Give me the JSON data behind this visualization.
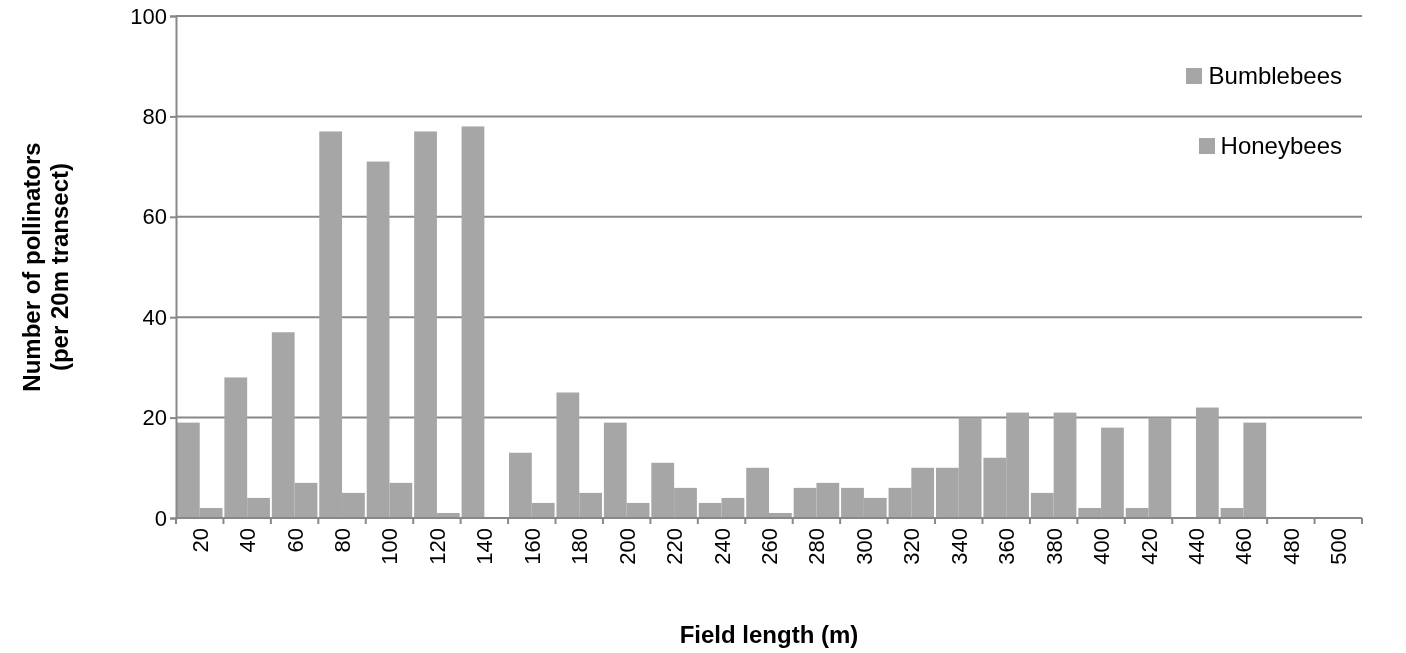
{
  "chart_data": {
    "type": "bar",
    "xlabel": "Field length (m)",
    "ylabel": "Number of pollinators\n(per 20m transect)",
    "categories": [
      "20",
      "40",
      "60",
      "80",
      "100",
      "120",
      "140",
      "160",
      "180",
      "200",
      "220",
      "240",
      "260",
      "280",
      "300",
      "320",
      "340",
      "360",
      "380",
      "400",
      "420",
      "440",
      "460",
      "480",
      "500"
    ],
    "series": [
      {
        "name": "Bumblebees",
        "color": "#a6a6a6",
        "values": [
          19,
          28,
          37,
          77,
          71,
          77,
          78,
          13,
          25,
          19,
          11,
          3,
          10,
          6,
          6,
          6,
          10,
          12,
          5,
          2,
          2,
          0,
          2,
          0,
          0
        ]
      },
      {
        "name": "Honeybees",
        "color": "#a6a6a6",
        "values": [
          2,
          4,
          7,
          5,
          7,
          1,
          0,
          3,
          5,
          3,
          6,
          4,
          1,
          7,
          4,
          10,
          20,
          21,
          21,
          18,
          20,
          22,
          19,
          0,
          0
        ]
      }
    ],
    "ylim": [
      0,
      100
    ],
    "yticks": [
      0,
      20,
      40,
      60,
      80,
      100
    ],
    "grid": "y",
    "legend": "top right"
  }
}
